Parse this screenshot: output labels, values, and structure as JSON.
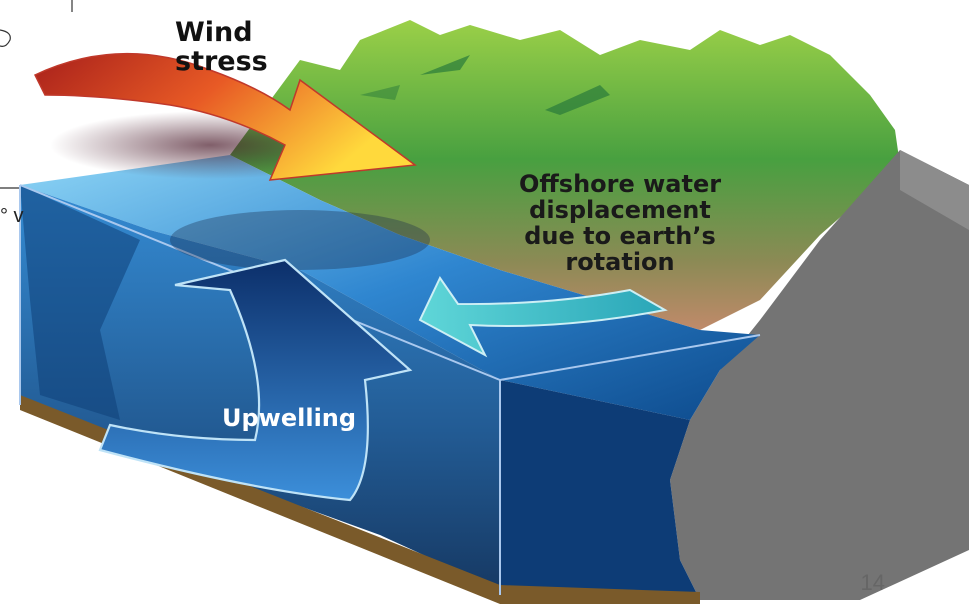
{
  "labels": {
    "wind_stress": [
      "Wind",
      "stress"
    ],
    "offshore": [
      "Offshore water",
      "displacement",
      "due to earth’s",
      "rotation"
    ],
    "upwelling": "Upwelling"
  },
  "page_number": "14",
  "cutoff_text": "° v",
  "colors": {
    "land_green": "#5cae3a",
    "land_rock": "#7a7a7a",
    "ocean_light": "#6cc3ee",
    "ocean_deep": "#0a3d7a",
    "seafloor": "#7a5a2a",
    "wind_arrow_start": "#b5231c",
    "wind_arrow_end": "#ffd23a",
    "offshore_arrow": "#34c0c8",
    "upwelling_arrow": "#1a4f9a"
  },
  "icons": [
    "wind-stress-arrow",
    "offshore-displacement-arrow",
    "upwelling-arrow"
  ]
}
